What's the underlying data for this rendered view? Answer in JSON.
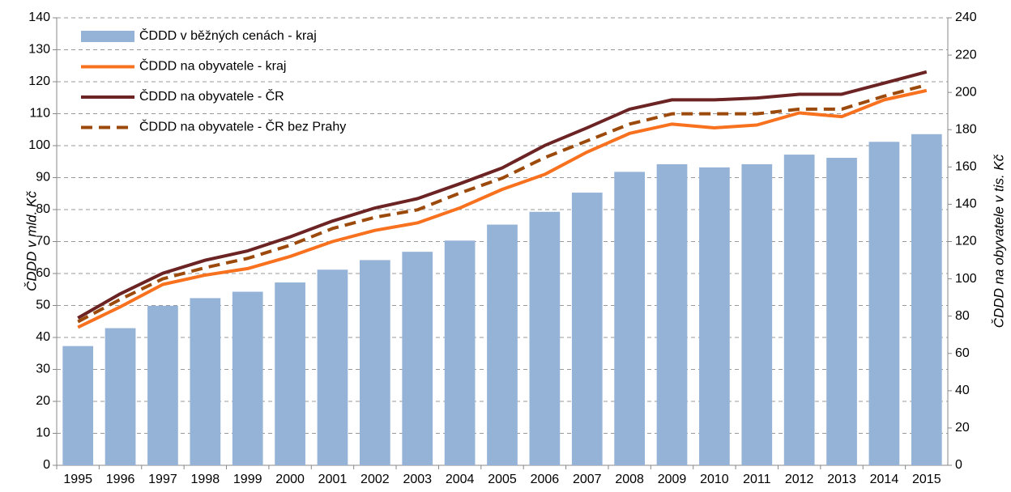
{
  "chart_data": {
    "type": "bar",
    "categories": [
      "1995",
      "1996",
      "1997",
      "1998",
      "1999",
      "2000",
      "2001",
      "2002",
      "2003",
      "2004",
      "2005",
      "2006",
      "2007",
      "2008",
      "2009",
      "2010",
      "2011",
      "2012",
      "2013",
      "2014",
      "2015"
    ],
    "ylabel": "ČDDD v mld. Kč",
    "y2label": "ČDDD na obyvatele v tis. Kč",
    "ylabel_color": "#3a8fd0",
    "y2label_color": "#f26b1d",
    "ylim": [
      0,
      140
    ],
    "yticks": [
      0,
      10,
      20,
      30,
      40,
      50,
      60,
      70,
      80,
      90,
      100,
      110,
      120,
      130,
      140
    ],
    "y2lim": [
      0,
      240
    ],
    "y2ticks": [
      0,
      20,
      40,
      60,
      80,
      100,
      120,
      140,
      160,
      180,
      200,
      220,
      240
    ],
    "grid": true,
    "legend": "upper left",
    "series": [
      {
        "name": "ČDDD v běžných cenách - kraj",
        "type": "bar",
        "color": "#95b3d7",
        "values": [
          37.3,
          42.9,
          49.9,
          52.3,
          54.3,
          57.2,
          61.2,
          64.2,
          66.8,
          70.3,
          75.3,
          79.3,
          85.3,
          91.8,
          94.2,
          93.2,
          94.2,
          97.2,
          96.2,
          101.2,
          103.6
        ]
      },
      {
        "name": "ČDDD na obyvatele - kraj",
        "type": "line",
        "axis": "y2",
        "color": "#f7711e",
        "values": [
          74,
          85,
          97,
          102,
          105.5,
          112,
          120,
          126,
          130,
          138,
          148,
          156,
          168,
          178,
          183,
          181,
          182.5,
          189,
          187,
          196,
          201
        ]
      },
      {
        "name": "ČDDD na obyvatele - ČR",
        "type": "line",
        "axis": "y2",
        "color": "#6b2323",
        "values": [
          79,
          92,
          103,
          110,
          115,
          122.5,
          131,
          138,
          143,
          151,
          159.5,
          171.5,
          181,
          191,
          196,
          196,
          197,
          199,
          199,
          205,
          211
        ]
      },
      {
        "name": "ČDDD na obyvatele - ČR bez Prahy",
        "type": "line",
        "axis": "y2",
        "color": "#9c4a0b",
        "dashed": true,
        "values": [
          77,
          89,
          100,
          106,
          111,
          118,
          127,
          133,
          137,
          146,
          154,
          165,
          174,
          183,
          188.5,
          188.5,
          188.5,
          191,
          191,
          198,
          204
        ]
      }
    ]
  }
}
